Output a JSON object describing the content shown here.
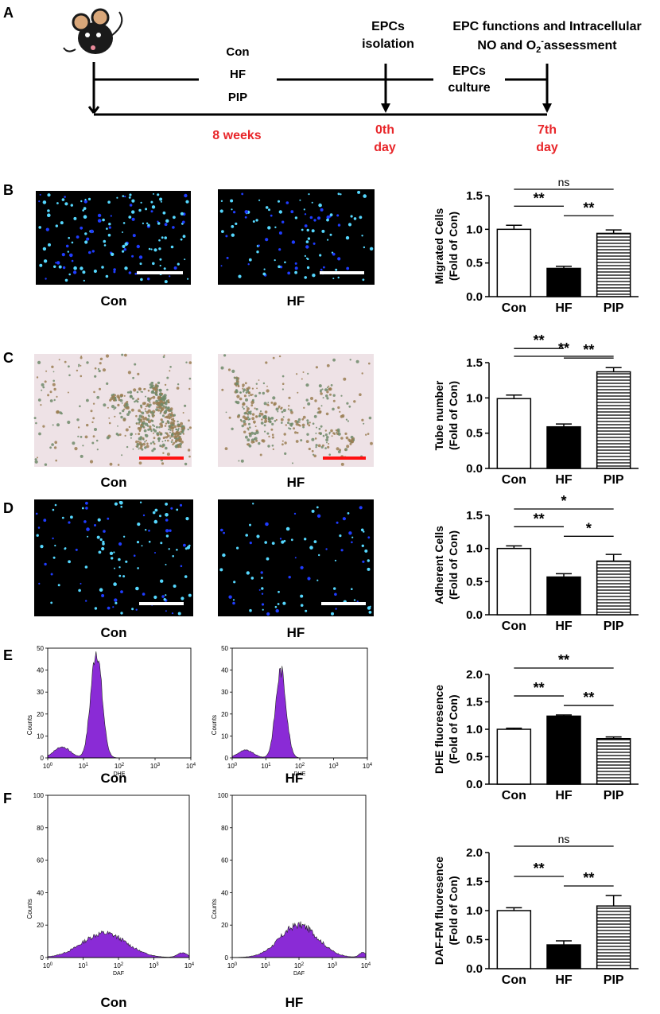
{
  "colors": {
    "timeline_red": "#e8262a",
    "histogram_fill": "#8a2bd6",
    "fluor_cyan": "#55d8ff",
    "fluor_blue": "#1f3cff",
    "micro_bg": "#000000",
    "tube_bg": "#eee2e6",
    "tube_cell": "#9a7e52",
    "scale_white": "#ffffff",
    "scale_red": "#ff1010"
  },
  "panel_letters": [
    "A",
    "B",
    "C",
    "D",
    "E",
    "F"
  ],
  "timeline": {
    "groups": [
      "Con",
      "HF",
      "PIP"
    ],
    "stage1_title": [
      "EPCs",
      "isolation"
    ],
    "stage2_title": [
      "EPC functions and Intracellular",
      "NO and O",
      "2",
      "-",
      "assessment"
    ],
    "culture": [
      "EPCs",
      "culture"
    ],
    "duration": "8 weeks",
    "day0": [
      "0th",
      "day"
    ],
    "day7": [
      "7th",
      "day"
    ],
    "mouse_icon": "mouse-icon"
  },
  "image_captions": {
    "B": [
      "Con",
      "HF"
    ],
    "C": [
      "Con",
      "HF"
    ],
    "D": [
      "Con",
      "HF"
    ],
    "E": [
      "Con",
      "HF"
    ],
    "F": [
      "Con",
      "HF"
    ]
  },
  "histograms": {
    "E": {
      "ylabel": "Counts",
      "xlabel": "DHE",
      "yticks": [
        "0",
        "10",
        "20",
        "30",
        "40",
        "50"
      ],
      "ymax": 50
    },
    "F": {
      "ylabel": "Counts",
      "xlabel": "DAF",
      "yticks": [
        "0",
        "20",
        "40",
        "60",
        "80",
        "100"
      ],
      "ymax": 100
    },
    "xticks": [
      {
        "b": "10",
        "e": "0"
      },
      {
        "b": "10",
        "e": "1"
      },
      {
        "b": "10",
        "e": "2"
      },
      {
        "b": "10",
        "e": "3"
      },
      {
        "b": "10",
        "e": "4"
      }
    ]
  },
  "chart_data": [
    {
      "panel": "B",
      "type": "bar",
      "categories": [
        "Con",
        "HF",
        "PIP"
      ],
      "values": [
        1.0,
        0.42,
        0.94
      ],
      "errors": [
        0.06,
        0.03,
        0.05
      ],
      "ylabel": [
        "Migrated Cells",
        "(Fold of Con)"
      ],
      "ylim": [
        0,
        1.5
      ],
      "yticks": [
        "0.0",
        "0.5",
        "1.0",
        "1.5"
      ],
      "fills": [
        "white",
        "black",
        "hatch"
      ],
      "significance": [
        {
          "from": 0,
          "to": 1,
          "label": "**"
        },
        {
          "from": 1,
          "to": 2,
          "label": "**"
        },
        {
          "from": 0,
          "to": 2,
          "label": "ns"
        }
      ]
    },
    {
      "panel": "C",
      "type": "bar",
      "categories": [
        "Con",
        "HF",
        "PIP"
      ],
      "values": [
        0.99,
        0.59,
        1.37
      ],
      "errors": [
        0.05,
        0.04,
        0.06
      ],
      "ylabel": [
        "Tube number",
        "(Fold of Con)"
      ],
      "ylim": [
        0,
        1.5
      ],
      "yticks": [
        "0.0",
        "0.5",
        "1.0",
        "1.5"
      ],
      "fills": [
        "white",
        "black",
        "hatch"
      ],
      "significance": [
        {
          "from": 0,
          "to": 1,
          "label": "**"
        },
        {
          "from": 1,
          "to": 2,
          "label": "**"
        },
        {
          "from": 0,
          "to": 2,
          "label": "**"
        }
      ]
    },
    {
      "panel": "D",
      "type": "bar",
      "categories": [
        "Con",
        "HF",
        "PIP"
      ],
      "values": [
        1.0,
        0.57,
        0.81
      ],
      "errors": [
        0.04,
        0.05,
        0.1
      ],
      "ylabel": [
        "Adherent Cells",
        "(Fold of Con)"
      ],
      "ylim": [
        0,
        1.5
      ],
      "yticks": [
        "0.0",
        "0.5",
        "1.0",
        "1.5"
      ],
      "fills": [
        "white",
        "black",
        "hatch"
      ],
      "significance": [
        {
          "from": 0,
          "to": 1,
          "label": "**"
        },
        {
          "from": 1,
          "to": 2,
          "label": "*"
        },
        {
          "from": 0,
          "to": 2,
          "label": "*"
        }
      ]
    },
    {
      "panel": "E",
      "type": "bar",
      "categories": [
        "Con",
        "HF",
        "PIP"
      ],
      "values": [
        1.0,
        1.24,
        0.83
      ],
      "errors": [
        0.02,
        0.02,
        0.03
      ],
      "ylabel": [
        "DHE fluoresence",
        "(Fold of Con)"
      ],
      "ylim": [
        0,
        2.0
      ],
      "yticks": [
        "0.0",
        "0.5",
        "1.0",
        "1.5",
        "2.0"
      ],
      "fills": [
        "white",
        "black",
        "hatch"
      ],
      "significance": [
        {
          "from": 0,
          "to": 1,
          "label": "**"
        },
        {
          "from": 1,
          "to": 2,
          "label": "**"
        },
        {
          "from": 0,
          "to": 2,
          "label": "**"
        }
      ]
    },
    {
      "panel": "F",
      "type": "bar",
      "categories": [
        "Con",
        "HF",
        "PIP"
      ],
      "values": [
        1.0,
        0.41,
        1.08
      ],
      "errors": [
        0.05,
        0.07,
        0.18
      ],
      "ylabel": [
        "DAF-FM fluoresence",
        "(Fold of Con)"
      ],
      "ylim": [
        0,
        2.0
      ],
      "yticks": [
        "0.0",
        "0.5",
        "1.0",
        "1.5",
        "2.0"
      ],
      "fills": [
        "white",
        "black",
        "hatch"
      ],
      "significance": [
        {
          "from": 0,
          "to": 1,
          "label": "**"
        },
        {
          "from": 1,
          "to": 2,
          "label": "**"
        },
        {
          "from": 0,
          "to": 2,
          "label": "ns"
        }
      ]
    }
  ]
}
